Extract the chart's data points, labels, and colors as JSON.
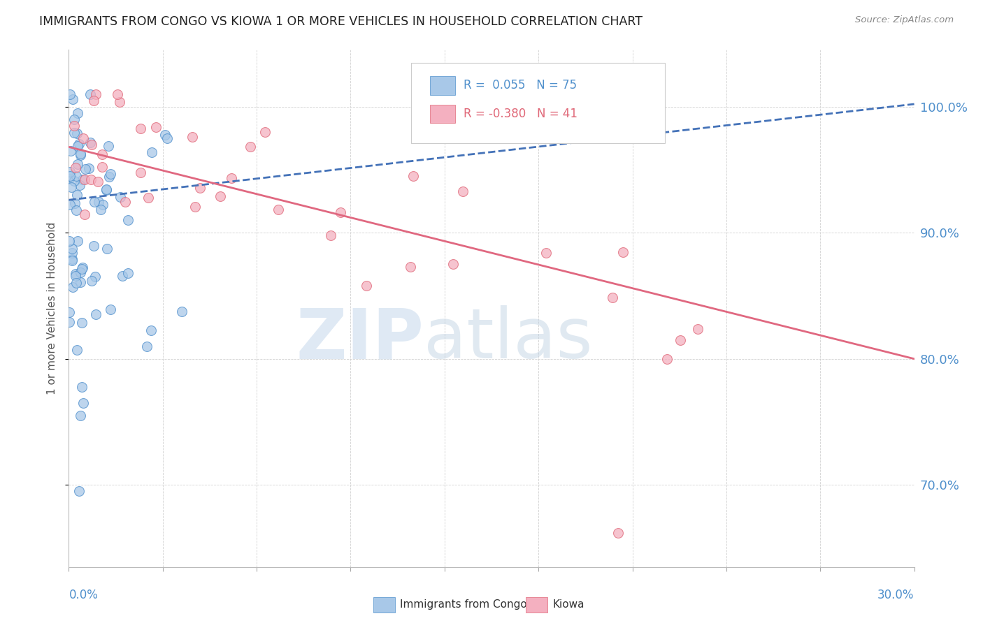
{
  "title": "IMMIGRANTS FROM CONGO VS KIOWA 1 OR MORE VEHICLES IN HOUSEHOLD CORRELATION CHART",
  "source": "Source: ZipAtlas.com",
  "ylabel": "1 or more Vehicles in Household",
  "ytick_values": [
    0.7,
    0.8,
    0.9,
    1.0
  ],
  "xmin": 0.0,
  "xmax": 0.3,
  "ymin": 0.635,
  "ymax": 1.045,
  "legend_label1": "Immigrants from Congo",
  "legend_label2": "Kiowa",
  "color_blue_fill": "#a8c8e8",
  "color_blue_edge": "#5090cc",
  "color_pink_fill": "#f4b0c0",
  "color_pink_edge": "#e06878",
  "color_blue_line": "#4472b8",
  "color_pink_line": "#e06880",
  "color_axis_text": "#5090cc",
  "R1": 0.055,
  "N1": 75,
  "R2": -0.38,
  "N2": 41,
  "blue_trend_x0": 0.0,
  "blue_trend_y0": 0.926,
  "blue_trend_x1": 0.3,
  "blue_trend_y1": 1.002,
  "pink_trend_x0": 0.0,
  "pink_trend_y0": 0.968,
  "pink_trend_x1": 0.3,
  "pink_trend_y1": 0.8,
  "watermark_zip_color": "#c8ddf0",
  "watermark_atlas_color": "#b8cce0",
  "grid_color": "#cccccc",
  "title_color": "#222222",
  "source_color": "#888888"
}
